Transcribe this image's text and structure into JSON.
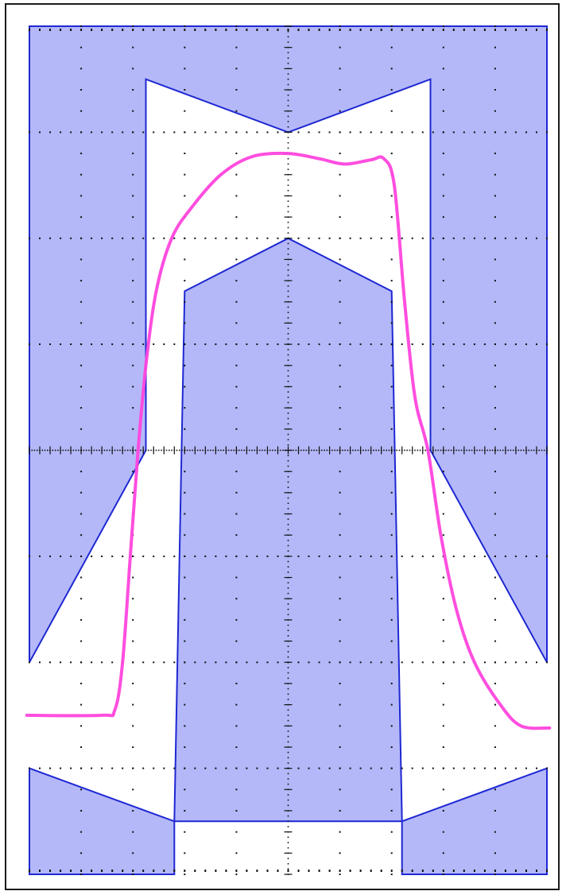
{
  "chart_data": {
    "type": "line",
    "title": "",
    "xlabel": "",
    "ylabel": "",
    "xlim": [
      -5,
      5
    ],
    "ylim": [
      -4,
      4
    ],
    "grid": true,
    "grid_divisions": {
      "x": 10,
      "y": 8,
      "minor_per_division": 5
    },
    "colors": {
      "mask_fill": "#b4b8f8",
      "mask_edge": "#1e28d2",
      "trace": "#ff44dd",
      "grid": "#111111"
    },
    "mask_top": {
      "name": "",
      "points": [
        [
          -5,
          4
        ],
        [
          5,
          4
        ],
        [
          5,
          -2
        ],
        [
          2.75,
          0
        ],
        [
          2.75,
          3.5
        ],
        [
          0,
          3
        ],
        [
          -2.75,
          3.5
        ],
        [
          -2.75,
          0
        ],
        [
          -5,
          -2
        ]
      ]
    },
    "mask_center": {
      "name": "",
      "points": [
        [
          -2.2,
          -3.5
        ],
        [
          -2.0,
          1.5
        ],
        [
          0,
          2
        ],
        [
          2.0,
          1.5
        ],
        [
          2.2,
          -3.5
        ]
      ]
    },
    "mask_bottom_left": {
      "name": "",
      "points": [
        [
          -5,
          -4
        ],
        [
          -5,
          -3
        ],
        [
          -2.2,
          -3.5
        ],
        [
          -2.2,
          -4
        ]
      ]
    },
    "mask_bottom_right": {
      "name": "",
      "points": [
        [
          2.2,
          -4
        ],
        [
          2.2,
          -3.5
        ],
        [
          5,
          -3
        ],
        [
          5,
          -4
        ]
      ]
    },
    "series": [
      {
        "name": "",
        "points": [
          [
            -5.05,
            -2.5
          ],
          [
            -3.6,
            -2.5
          ],
          [
            -3.35,
            -2.45
          ],
          [
            -3.2,
            -2.0
          ],
          [
            -3.05,
            -1.0
          ],
          [
            -2.9,
            0.0
          ],
          [
            -2.75,
            0.8
          ],
          [
            -2.55,
            1.5
          ],
          [
            -2.25,
            2.0
          ],
          [
            -1.85,
            2.3
          ],
          [
            -1.3,
            2.6
          ],
          [
            -0.7,
            2.77
          ],
          [
            0.0,
            2.8
          ],
          [
            0.6,
            2.75
          ],
          [
            1.1,
            2.7
          ],
          [
            1.6,
            2.74
          ],
          [
            1.85,
            2.75
          ],
          [
            2.05,
            2.5
          ],
          [
            2.25,
            1.4
          ],
          [
            2.45,
            0.5
          ],
          [
            2.7,
            0.0
          ],
          [
            2.95,
            -0.8
          ],
          [
            3.25,
            -1.5
          ],
          [
            3.6,
            -2.0
          ],
          [
            4.1,
            -2.4
          ],
          [
            4.5,
            -2.6
          ],
          [
            5.05,
            -2.62
          ]
        ]
      }
    ]
  }
}
